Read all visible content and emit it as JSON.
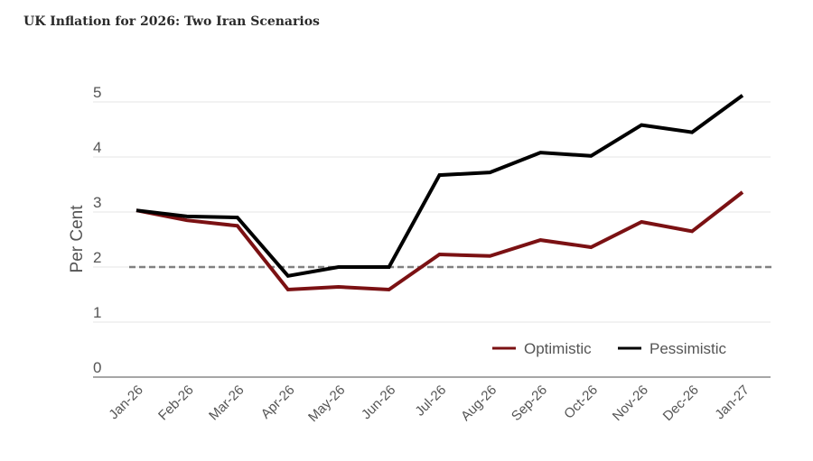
{
  "title": "UK Inflation for 2026: Two Iran Scenarios",
  "chart_data": {
    "type": "line",
    "title": "UK Inflation for 2026: Two Iran Scenarios",
    "xlabel": "",
    "ylabel": "Per Cent",
    "ylim": [
      0,
      5.3
    ],
    "yticks": [
      0,
      1,
      2,
      3,
      4,
      5
    ],
    "grid": true,
    "legend_position": "bottom-right",
    "categories": [
      "Jan-26",
      "Feb-26",
      "Mar-26",
      "Apr-26",
      "May-26",
      "Jun-26",
      "Jul-26",
      "Aug-26",
      "Sep-26",
      "Oct-26",
      "Nov-26",
      "Dec-26",
      "Jan-27"
    ],
    "series": [
      {
        "name": "Optimistic",
        "color": "#7b1113",
        "values": [
          3.03,
          2.85,
          2.75,
          1.59,
          1.64,
          1.59,
          2.23,
          2.2,
          2.49,
          2.36,
          2.82,
          2.65,
          3.36
        ]
      },
      {
        "name": "Pessimistic",
        "color": "#000000",
        "values": [
          3.03,
          2.92,
          2.9,
          1.84,
          2.0,
          2.0,
          3.67,
          3.72,
          4.08,
          4.02,
          4.58,
          4.45,
          5.12
        ]
      }
    ],
    "reference_line": {
      "value": 2.0,
      "style": "dashed",
      "color": "#808080"
    }
  }
}
